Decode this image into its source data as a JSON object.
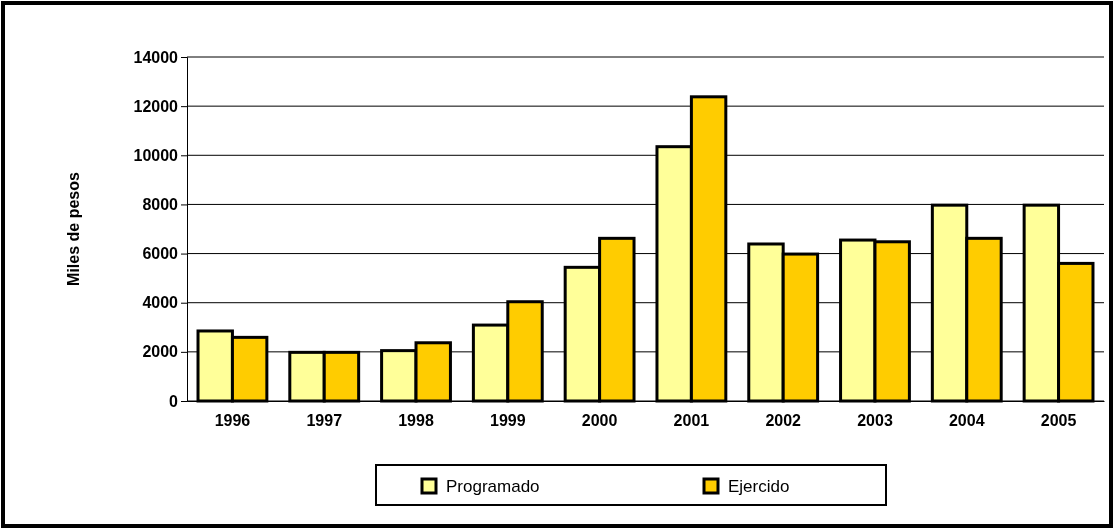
{
  "chart_data": {
    "type": "bar",
    "ylabel": "Miles de pesos",
    "categories": [
      "1996",
      "1997",
      "1998",
      "1999",
      "2000",
      "2001",
      "2002",
      "2003",
      "2004",
      "2005"
    ],
    "series": [
      {
        "name": "Programado",
        "color": "#ffff99",
        "values": [
          2850,
          1980,
          2050,
          3090,
          5440,
          10350,
          6390,
          6550,
          7970,
          7970
        ]
      },
      {
        "name": "Ejercido",
        "color": "#ffcc00",
        "values": [
          2590,
          1980,
          2370,
          4040,
          6620,
          12380,
          5980,
          6480,
          6620,
          5600
        ]
      }
    ],
    "ylim": [
      0,
      14000
    ],
    "yticks": [
      0,
      2000,
      4000,
      6000,
      8000,
      10000,
      12000,
      14000
    ],
    "grid": "y",
    "legend": "bottom"
  }
}
